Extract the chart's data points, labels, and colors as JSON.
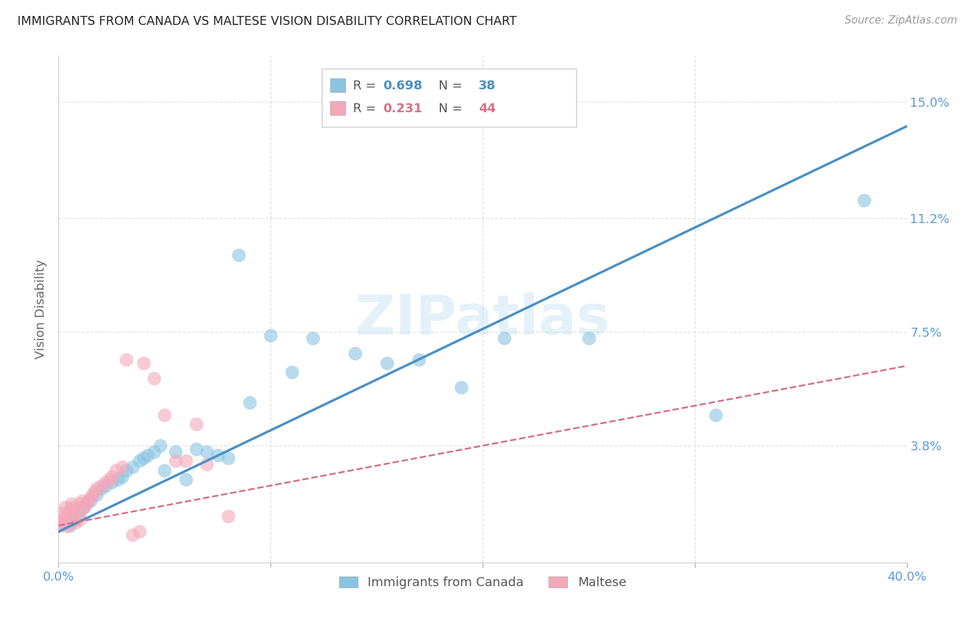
{
  "title": "IMMIGRANTS FROM CANADA VS MALTESE VISION DISABILITY CORRELATION CHART",
  "source": "Source: ZipAtlas.com",
  "ylabel": "Vision Disability",
  "xlim": [
    0.0,
    0.4
  ],
  "ylim": [
    0.0,
    0.165
  ],
  "xticks": [
    0.0,
    0.1,
    0.2,
    0.3,
    0.4
  ],
  "xticklabels": [
    "0.0%",
    "",
    "",
    "",
    "40.0%"
  ],
  "ytick_positions": [
    0.038,
    0.075,
    0.112,
    0.15
  ],
  "ytick_labels": [
    "3.8%",
    "7.5%",
    "11.2%",
    "15.0%"
  ],
  "blue_color": "#89c4e1",
  "pink_color": "#f4a7b9",
  "blue_line_color": "#4a90c4",
  "pink_line_color": "#d4708a",
  "grid_color": "#e0e0e0",
  "blue_points_x": [
    0.005,
    0.007,
    0.01,
    0.012,
    0.015,
    0.018,
    0.02,
    0.022,
    0.025,
    0.028,
    0.03,
    0.032,
    0.035,
    0.038,
    0.04,
    0.042,
    0.045,
    0.048,
    0.05,
    0.055,
    0.06,
    0.065,
    0.07,
    0.075,
    0.08,
    0.085,
    0.09,
    0.1,
    0.11,
    0.12,
    0.14,
    0.155,
    0.17,
    0.19,
    0.21,
    0.25,
    0.31,
    0.38
  ],
  "blue_points_y": [
    0.012,
    0.014,
    0.016,
    0.018,
    0.02,
    0.022,
    0.024,
    0.025,
    0.026,
    0.027,
    0.028,
    0.03,
    0.031,
    0.033,
    0.034,
    0.035,
    0.036,
    0.038,
    0.03,
    0.036,
    0.027,
    0.037,
    0.036,
    0.035,
    0.034,
    0.1,
    0.052,
    0.074,
    0.062,
    0.073,
    0.068,
    0.065,
    0.066,
    0.057,
    0.073,
    0.073,
    0.048,
    0.118
  ],
  "pink_points_x": [
    0.0,
    0.001,
    0.002,
    0.002,
    0.003,
    0.003,
    0.004,
    0.004,
    0.005,
    0.005,
    0.006,
    0.006,
    0.007,
    0.007,
    0.008,
    0.008,
    0.009,
    0.01,
    0.01,
    0.011,
    0.012,
    0.013,
    0.014,
    0.015,
    0.016,
    0.017,
    0.018,
    0.02,
    0.022,
    0.024,
    0.025,
    0.027,
    0.03,
    0.032,
    0.035,
    0.038,
    0.04,
    0.045,
    0.05,
    0.055,
    0.06,
    0.065,
    0.07,
    0.08
  ],
  "pink_points_y": [
    0.014,
    0.012,
    0.013,
    0.016,
    0.014,
    0.018,
    0.012,
    0.015,
    0.013,
    0.017,
    0.016,
    0.019,
    0.014,
    0.018,
    0.013,
    0.017,
    0.016,
    0.014,
    0.019,
    0.02,
    0.018,
    0.019,
    0.02,
    0.021,
    0.022,
    0.023,
    0.024,
    0.025,
    0.026,
    0.027,
    0.028,
    0.03,
    0.031,
    0.066,
    0.009,
    0.01,
    0.065,
    0.06,
    0.048,
    0.033,
    0.033,
    0.045,
    0.032,
    0.015
  ],
  "blue_line_slope": 0.34,
  "blue_line_intercept": 0.01,
  "pink_line_slope": 0.12,
  "pink_line_intercept": 0.012,
  "legend_items": [
    {
      "label": "R = 0.698  N = 38",
      "color": "#89c4e1",
      "r_val": "0.698",
      "n_val": "38",
      "r_color": "#4a90c4",
      "n_color": "#4a90c4"
    },
    {
      "label": "R = 0.231  N = 44",
      "color": "#f4a7b9",
      "r_val": "0.231",
      "n_val": "44",
      "r_color": "#d4708a",
      "n_color": "#d4708a"
    }
  ],
  "bottom_legend": [
    "Immigrants from Canada",
    "Maltese"
  ]
}
